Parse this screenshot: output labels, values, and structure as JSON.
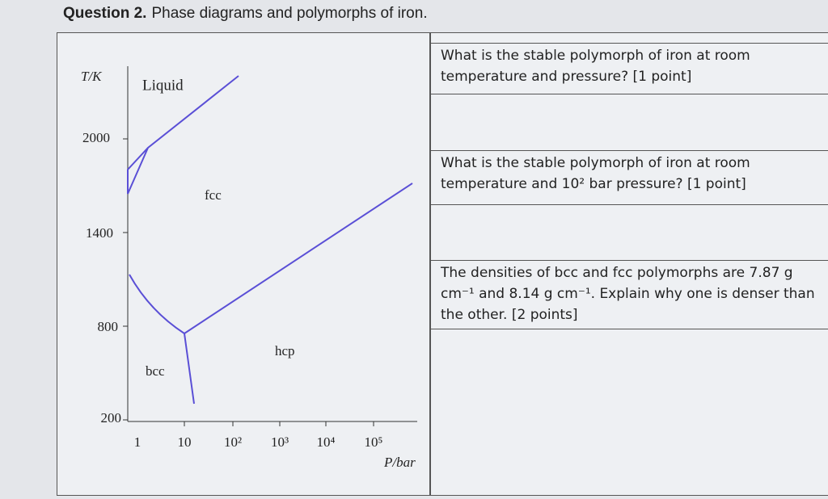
{
  "title": {
    "label": "Question 2.",
    "text": "Phase diagrams and polymorphs of iron."
  },
  "diagram": {
    "y_axis_label": "T/K",
    "x_axis_label": "P/bar",
    "yticks": [
      "2000",
      "1400",
      "800",
      "200"
    ],
    "xticks": [
      "1",
      "10",
      "10²",
      "10³",
      "10⁴",
      "10⁵"
    ],
    "regions": [
      "Liquid",
      "fcc",
      "hcp",
      "bcc"
    ]
  },
  "questions": [
    {
      "text": "What is the stable polymorph of iron at room temperature and pressure? [1 point]"
    },
    {
      "text": "What is the stable polymorph of iron at room temperature and 10² bar pressure? [1 point]"
    },
    {
      "text": "The densities of bcc and fcc polymorphs are 7.87 g cm⁻¹ and 8.14 g cm⁻¹. Explain why one is denser than the other.  [2 points]"
    }
  ]
}
